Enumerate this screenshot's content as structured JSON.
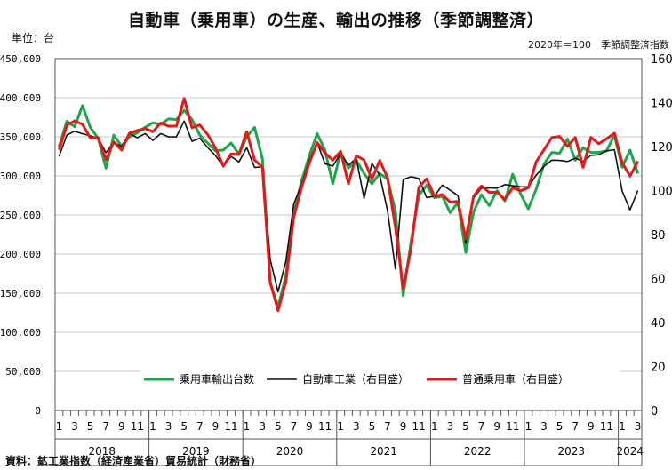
{
  "chart_data": {
    "type": "line",
    "title": "自動車（乗用車）の生産、輸出の推移（季節調整済）",
    "left_axis_label": "単位：台",
    "right_axis_label": "2020年＝100　季節調整済指数",
    "source": "資料：鉱工業指数（経済産業省）貿易統計（財務省）",
    "left_ylim": [
      0,
      450000
    ],
    "right_ylim": [
      0,
      160
    ],
    "left_ticks": [
      "0",
      "50,000",
      "100,000",
      "150,000",
      "200,000",
      "250,000",
      "300,000",
      "350,000",
      "400,000",
      "450,000"
    ],
    "right_ticks": [
      "0",
      "20",
      "40",
      "60",
      "80",
      "100",
      "120",
      "140",
      "160"
    ],
    "years": [
      "2018",
      "2019",
      "2020",
      "2021",
      "2022",
      "2023",
      "2024"
    ],
    "month_labels": [
      "1",
      "",
      "3",
      "",
      "5",
      "",
      "7",
      "",
      "9",
      "",
      "11",
      "",
      "1",
      "",
      "3",
      "",
      "5",
      "",
      "7",
      "",
      "9",
      "",
      "11",
      "",
      "1",
      "",
      "3",
      "",
      "5",
      "",
      "7",
      "",
      "9",
      "",
      "11",
      "",
      "1",
      "",
      "3",
      "",
      "5",
      "",
      "7",
      "",
      "9",
      "",
      "11",
      "",
      "1",
      "",
      "3",
      "",
      "5",
      "",
      "7",
      "",
      "9",
      "",
      "11",
      "",
      "1",
      "",
      "3",
      "",
      "5",
      "",
      "7",
      "",
      "9",
      "",
      "11",
      "",
      "1",
      "",
      "3"
    ],
    "grid": true,
    "legend_position": "bottom-center",
    "series": [
      {
        "name": "乗用車輸出台数",
        "axis": "left",
        "color": "#1fa64a",
        "values": [
          337000,
          370000,
          363000,
          390000,
          362000,
          348000,
          310000,
          352000,
          338000,
          350000,
          355000,
          362000,
          368000,
          366000,
          373000,
          372000,
          384000,
          372000,
          352000,
          342000,
          332000,
          333000,
          342000,
          328000,
          350000,
          362000,
          322000,
          163000,
          133000,
          172000,
          252000,
          293000,
          326000,
          354000,
          333000,
          290000,
          330000,
          310000,
          320000,
          303000,
          290000,
          303000,
          296000,
          255000,
          147000,
          216000,
          275000,
          288000,
          272000,
          274000,
          253000,
          266000,
          202000,
          254000,
          276000,
          262000,
          281000,
          268000,
          302000,
          277000,
          258000,
          283000,
          315000,
          330000,
          329000,
          347000,
          320000,
          336000,
          330000,
          330000,
          332000,
          352000,
          311000,
          333000,
          303000
        ]
      },
      {
        "name": "自動車工業（右目盛）",
        "axis": "right",
        "color": "#111111",
        "values": [
          115.5,
          125.2,
          127.0,
          125.8,
          124.9,
          123.8,
          117.2,
          121.8,
          120.0,
          126.0,
          124.0,
          125.9,
          122.8,
          125.9,
          124.4,
          124.4,
          131.6,
          122.4,
          123.8,
          119.6,
          115.9,
          111.1,
          115.5,
          113.0,
          119.5,
          110.5,
          110.8,
          68.6,
          54.0,
          67.8,
          93.8,
          102.7,
          113.9,
          121.9,
          112.2,
          111.1,
          116.8,
          111.6,
          114.6,
          96.4,
          112.3,
          107.0,
          90.8,
          64.4,
          105.0,
          106.3,
          105.5,
          96.8,
          97.4,
          102.5,
          100.2,
          97.7,
          76.0,
          96.6,
          101.1,
          101.2,
          101.1,
          102.7,
          102.2,
          101.7,
          101.7,
          107.0,
          111.0,
          113.8,
          113.7,
          113.2,
          114.7,
          113.3,
          116.0,
          116.3,
          118.0,
          118.6,
          99.7,
          91.2,
          100.0
        ]
      },
      {
        "name": "普通乗用車（右目盛）",
        "axis": "right",
        "color": "#e3191b",
        "values": [
          118.5,
          129.7,
          131.7,
          130.1,
          123.9,
          124.1,
          114.0,
          122.1,
          118.4,
          126.1,
          127.3,
          128.2,
          126.8,
          130.7,
          129.3,
          129.3,
          141.9,
          128.6,
          129.8,
          125.5,
          119.4,
          111.1,
          116.7,
          116.4,
          126.7,
          113.8,
          110.7,
          58.4,
          45.4,
          58.5,
          87.8,
          101.3,
          112.5,
          121.8,
          117.1,
          113.8,
          117.8,
          103.1,
          115.8,
          113.9,
          105.2,
          113.7,
          105.8,
          83.4,
          55.6,
          73.6,
          101.5,
          105.3,
          97.4,
          98.2,
          94.7,
          95.1,
          78.0,
          97.4,
          102.1,
          99.2,
          99.2,
          96.0,
          101.2,
          99.9,
          101.2,
          113.0,
          118.6,
          124.1,
          124.6,
          120.1,
          124.1,
          110.5,
          124.2,
          121.3,
          123.5,
          126.1,
          112.6,
          106.6,
          113.3
        ]
      }
    ]
  }
}
